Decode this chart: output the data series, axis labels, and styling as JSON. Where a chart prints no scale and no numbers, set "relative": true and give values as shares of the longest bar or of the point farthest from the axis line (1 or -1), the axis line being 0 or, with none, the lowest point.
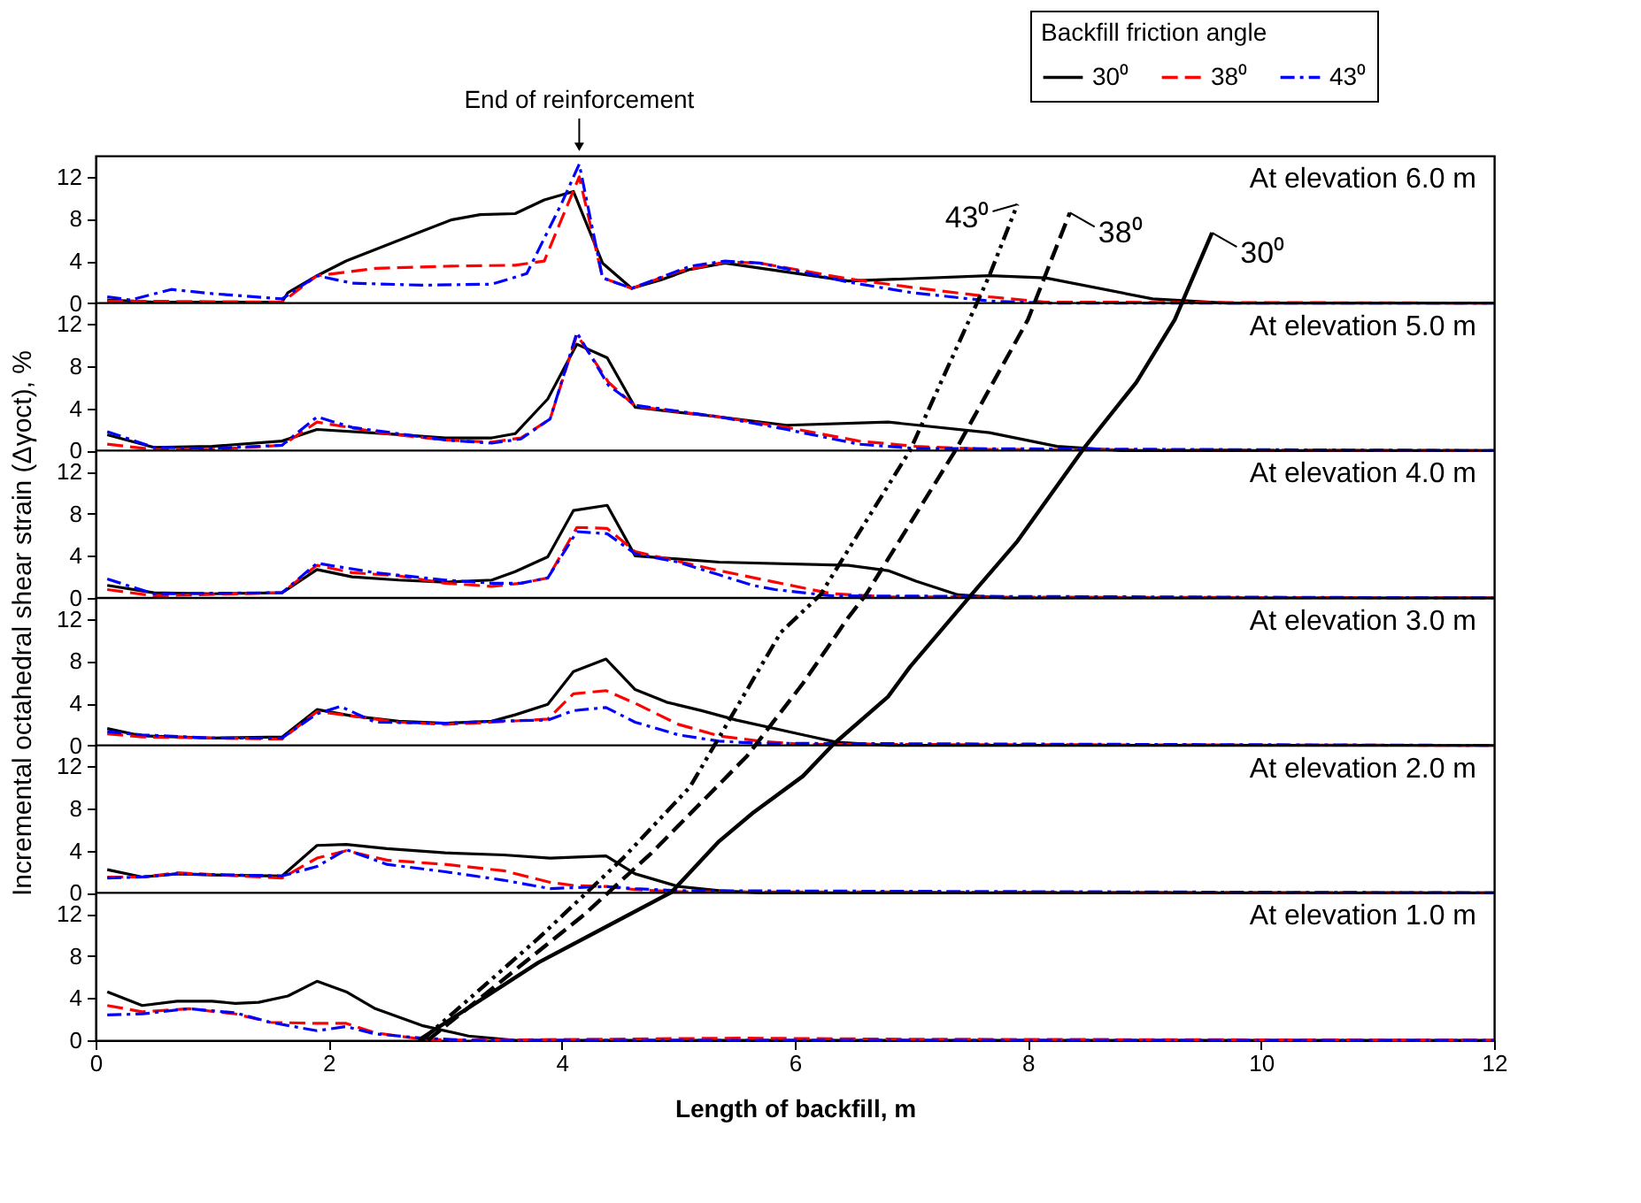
{
  "chart_data": [
    {
      "type": "line",
      "title": "At elevation 6.0 m",
      "xlim": [
        0,
        12
      ],
      "ylim": [
        0,
        14
      ],
      "yticks": [
        0,
        4,
        8,
        12
      ],
      "tick_labels": "y",
      "legend": "top right",
      "legend_title": "Backfill friction angle",
      "annotations": [
        {
          "text": "End of reinforcement",
          "x": 4.15
        }
      ],
      "series": [
        {
          "name": "30⁰",
          "color": "#000000",
          "line_style": "solid",
          "x": [
            0.1,
            0.5,
            1.6,
            1.65,
            1.9,
            2.15,
            2.45,
            2.75,
            3.05,
            3.3,
            3.6,
            3.85,
            4.1,
            4.35,
            4.6,
            4.85,
            5.1,
            5.4,
            6.46,
            7.67,
            8.15,
            9.07,
            9.7,
            12
          ],
          "values": [
            0.3,
            0.1,
            0.1,
            1.0,
            2.6,
            4.0,
            5.3,
            6.6,
            7.9,
            8.4,
            8.5,
            9.8,
            10.6,
            3.8,
            1.4,
            2.2,
            3.2,
            3.8,
            2.1,
            2.6,
            2.4,
            0.4,
            0,
            0
          ]
        },
        {
          "name": "38⁰",
          "color": "#ff0000",
          "line_style": "dashed",
          "x": [
            0.1,
            1.6,
            1.9,
            2.4,
            3.0,
            3.6,
            3.85,
            4.0,
            4.15,
            4.35,
            4.6,
            5.0,
            5.4,
            5.7,
            6.46,
            7.0,
            7.67,
            8.15,
            12
          ],
          "values": [
            0.2,
            0.1,
            2.6,
            3.3,
            3.5,
            3.6,
            4.0,
            8.0,
            12.0,
            2.4,
            1.4,
            3.0,
            3.9,
            3.8,
            2.3,
            1.5,
            0.6,
            0.1,
            0
          ]
        },
        {
          "name": "43⁰",
          "color": "#0000ff",
          "line_style": "dashdot",
          "x": [
            0.1,
            0.3,
            0.65,
            1.0,
            1.6,
            1.9,
            2.2,
            2.8,
            3.4,
            3.7,
            4.0,
            4.15,
            4.35,
            4.6,
            5.1,
            5.4,
            5.7,
            6.46,
            7.0,
            7.67,
            8.15,
            12
          ],
          "values": [
            0.6,
            0.3,
            1.3,
            0.9,
            0.4,
            2.6,
            1.9,
            1.7,
            1.8,
            2.8,
            9.5,
            13.2,
            2.4,
            1.4,
            3.5,
            4.0,
            3.8,
            2.0,
            1.0,
            0.2,
            0,
            0
          ]
        }
      ]
    },
    {
      "type": "line",
      "title": "At elevation 5.0 m",
      "xlim": [
        0,
        12
      ],
      "ylim": [
        0,
        14
      ],
      "yticks": [
        0,
        4,
        8,
        12
      ],
      "tick_labels": "y",
      "series": [
        {
          "color": "#000000",
          "line_style": "solid",
          "x": [
            0.1,
            0.5,
            1.0,
            1.6,
            1.9,
            2.5,
            3.0,
            3.4,
            3.6,
            3.88,
            4.13,
            4.39,
            4.63,
            5.35,
            5.93,
            6.8,
            7.67,
            8.25,
            8.8,
            12
          ],
          "values": [
            1.5,
            0.3,
            0.4,
            0.9,
            2.0,
            1.6,
            1.2,
            1.2,
            1.6,
            4.9,
            10.1,
            8.8,
            4.1,
            3.2,
            2.4,
            2.7,
            1.7,
            0.4,
            0,
            0
          ]
        },
        {
          "color": "#ff0000",
          "line_style": "dashed",
          "x": [
            0.1,
            0.5,
            1.0,
            1.6,
            1.9,
            2.5,
            3.0,
            3.4,
            3.65,
            3.9,
            4.13,
            4.4,
            4.63,
            5.35,
            5.93,
            6.55,
            7.04,
            7.67,
            12
          ],
          "values": [
            0.6,
            0.1,
            0.1,
            0.5,
            2.7,
            1.6,
            1.0,
            0.8,
            1.2,
            3.0,
            11.0,
            6.5,
            4.2,
            3.2,
            2.2,
            0.9,
            0.4,
            0.1,
            0
          ]
        },
        {
          "color": "#0000ff",
          "line_style": "dashdot",
          "x": [
            0.1,
            0.5,
            1.0,
            1.6,
            1.9,
            2.2,
            3.0,
            3.4,
            3.65,
            3.9,
            4.13,
            4.4,
            4.63,
            5.35,
            5.93,
            6.55,
            7.04,
            12
          ],
          "values": [
            1.8,
            0.3,
            0.2,
            0.5,
            3.2,
            2.2,
            1.0,
            0.7,
            1.1,
            3.0,
            11.2,
            6.2,
            4.3,
            3.2,
            2.0,
            0.6,
            0.2,
            0
          ]
        }
      ]
    },
    {
      "type": "line",
      "title": "At elevation 4.0 m",
      "xlim": [
        0,
        12
      ],
      "ylim": [
        0,
        14
      ],
      "yticks": [
        0,
        4,
        8,
        12
      ],
      "tick_labels": "y",
      "series": [
        {
          "color": "#000000",
          "line_style": "solid",
          "x": [
            0.1,
            0.5,
            1.0,
            1.6,
            1.9,
            2.2,
            2.6,
            3.0,
            3.4,
            3.6,
            3.88,
            4.1,
            4.39,
            4.63,
            5.35,
            6.46,
            6.8,
            7.04,
            7.4,
            7.8,
            12
          ],
          "values": [
            1.2,
            0.5,
            0.4,
            0.5,
            2.7,
            2.0,
            1.7,
            1.5,
            1.7,
            2.5,
            3.9,
            8.3,
            8.8,
            4.0,
            3.4,
            3.1,
            2.6,
            1.6,
            0.3,
            0,
            0
          ]
        },
        {
          "color": "#ff0000",
          "line_style": "dashed",
          "x": [
            0.1,
            0.5,
            1.6,
            1.9,
            2.2,
            2.6,
            3.0,
            3.4,
            3.65,
            3.88,
            4.13,
            4.39,
            4.63,
            5.35,
            5.83,
            6.32,
            6.8,
            12
          ],
          "values": [
            0.8,
            0.2,
            0.5,
            3.1,
            2.4,
            2.1,
            1.4,
            1.1,
            1.4,
            1.9,
            6.7,
            6.6,
            4.4,
            2.6,
            1.5,
            0.4,
            0.1,
            0
          ]
        },
        {
          "color": "#0000ff",
          "line_style": "dashdot",
          "x": [
            0.1,
            0.5,
            1.6,
            1.9,
            2.4,
            3.0,
            3.4,
            3.65,
            3.88,
            4.13,
            4.39,
            4.63,
            5.0,
            5.35,
            5.64,
            5.83,
            6.32,
            12
          ],
          "values": [
            1.8,
            0.4,
            0.5,
            3.3,
            2.4,
            1.7,
            1.4,
            1.4,
            1.9,
            6.3,
            6.1,
            4.2,
            3.4,
            2.2,
            1.2,
            0.8,
            0.2,
            0
          ]
        }
      ]
    },
    {
      "type": "line",
      "title": "At elevation 3.0 m",
      "xlim": [
        0,
        12
      ],
      "ylim": [
        0,
        14
      ],
      "yticks": [
        0,
        4,
        8,
        12
      ],
      "tick_labels": "y",
      "series": [
        {
          "color": "#000000",
          "line_style": "solid",
          "x": [
            0.1,
            0.4,
            1.0,
            1.6,
            1.9,
            2.2,
            2.6,
            3.0,
            3.4,
            3.6,
            3.88,
            4.1,
            4.38,
            4.63,
            4.9,
            5.2,
            5.5,
            6.07,
            6.36,
            6.8,
            12
          ],
          "values": [
            1.6,
            0.9,
            0.7,
            0.8,
            3.4,
            2.8,
            2.3,
            2.1,
            2.3,
            2.9,
            3.9,
            7.0,
            8.2,
            5.3,
            4.1,
            3.3,
            2.4,
            1.0,
            0.3,
            0,
            0
          ]
        },
        {
          "color": "#ff0000",
          "line_style": "dashed",
          "x": [
            0.1,
            0.4,
            1.0,
            1.6,
            1.9,
            2.2,
            2.6,
            3.0,
            3.4,
            3.88,
            4.1,
            4.38,
            4.63,
            5.0,
            5.35,
            5.7,
            6.07,
            12
          ],
          "values": [
            1.1,
            0.8,
            0.7,
            0.6,
            3.2,
            2.8,
            2.2,
            2.0,
            2.2,
            2.5,
            4.9,
            5.2,
            4.0,
            2.0,
            0.9,
            0.4,
            0.1,
            0
          ]
        },
        {
          "color": "#0000ff",
          "line_style": "dashdot",
          "x": [
            0.1,
            0.4,
            1.0,
            1.6,
            1.9,
            2.1,
            2.4,
            3.0,
            3.4,
            3.88,
            4.1,
            4.38,
            4.63,
            5.0,
            5.35,
            5.7,
            12
          ],
          "values": [
            1.3,
            1.0,
            0.7,
            0.7,
            3.0,
            3.7,
            2.2,
            2.1,
            2.3,
            2.4,
            3.3,
            3.6,
            2.2,
            1.0,
            0.4,
            0.2,
            0
          ]
        }
      ]
    },
    {
      "type": "line",
      "title": "At elevation 2.0 m",
      "xlim": [
        0,
        12
      ],
      "ylim": [
        0,
        14
      ],
      "yticks": [
        0,
        4,
        8,
        12
      ],
      "tick_labels": "y",
      "series": [
        {
          "color": "#000000",
          "line_style": "solid",
          "x": [
            0.1,
            0.4,
            0.7,
            1.0,
            1.6,
            1.9,
            2.15,
            2.5,
            3.0,
            3.5,
            3.9,
            4.38,
            4.63,
            5.0,
            5.35,
            5.7,
            12
          ],
          "values": [
            2.2,
            1.5,
            1.8,
            1.7,
            1.6,
            4.5,
            4.6,
            4.2,
            3.8,
            3.6,
            3.3,
            3.5,
            1.8,
            0.6,
            0.2,
            0,
            0
          ]
        },
        {
          "color": "#ff0000",
          "line_style": "dashed",
          "x": [
            0.1,
            0.4,
            0.7,
            1.6,
            1.9,
            2.15,
            2.5,
            3.0,
            3.5,
            3.9,
            4.1,
            4.38,
            4.63,
            5.0,
            12
          ],
          "values": [
            1.5,
            1.5,
            1.9,
            1.4,
            3.3,
            4.0,
            3.1,
            2.7,
            2.1,
            1.0,
            0.7,
            0.6,
            0.3,
            0.1,
            0
          ]
        },
        {
          "color": "#0000ff",
          "line_style": "dashdot",
          "x": [
            0.1,
            0.4,
            0.7,
            1.6,
            1.9,
            2.15,
            2.5,
            3.0,
            3.5,
            3.9,
            4.38,
            4.63,
            5.0,
            12
          ],
          "values": [
            1.4,
            1.5,
            1.8,
            1.6,
            2.5,
            4.1,
            2.7,
            2.0,
            1.2,
            0.4,
            0.6,
            0.4,
            0.2,
            0
          ]
        }
      ]
    },
    {
      "type": "line",
      "title": "At elevation 1.0 m",
      "xlim": [
        0,
        12
      ],
      "ylim": [
        0,
        14
      ],
      "yticks": [
        0,
        4,
        8,
        12
      ],
      "xlabel": "Length of backfill, m",
      "xticks": [
        0,
        2,
        4,
        6,
        8,
        10,
        12
      ],
      "series": [
        {
          "color": "#000000",
          "line_style": "solid",
          "x": [
            0.1,
            0.4,
            0.7,
            1.0,
            1.2,
            1.4,
            1.65,
            1.9,
            2.15,
            2.4,
            2.8,
            3.2,
            3.6,
            12
          ],
          "values": [
            4.6,
            3.3,
            3.7,
            3.7,
            3.5,
            3.6,
            4.2,
            5.6,
            4.6,
            3.0,
            1.4,
            0.4,
            0,
            0
          ]
        },
        {
          "color": "#ff0000",
          "line_style": "dashed",
          "x": [
            0.1,
            0.4,
            0.8,
            1.2,
            1.5,
            1.9,
            2.15,
            2.4,
            2.8,
            3.2,
            5.5,
            7.0,
            12
          ],
          "values": [
            3.3,
            2.7,
            3.0,
            2.5,
            1.7,
            1.6,
            1.6,
            0.7,
            0.1,
            0,
            0.2,
            0.1,
            0
          ]
        },
        {
          "color": "#0000ff",
          "line_style": "dashdot",
          "x": [
            0.1,
            0.4,
            0.8,
            1.2,
            1.5,
            1.9,
            2.15,
            2.4,
            2.8,
            3.2,
            12
          ],
          "values": [
            2.4,
            2.5,
            3.0,
            2.6,
            1.7,
            0.9,
            1.3,
            0.6,
            0.2,
            0,
            0
          ]
        }
      ]
    },
    {
      "type": "line",
      "relative": true,
      "ylabel": "Incremental octahedral shear strain (Δγoct), %",
      "xlim": [
        0,
        12
      ],
      "tick_labels": false,
      "annotations": [
        {
          "text": "30⁰",
          "x": 9.58,
          "y": 0.966
        },
        {
          "text": "38⁰",
          "x": 8.36,
          "y": 0.99
        },
        {
          "text": "43⁰",
          "x": 7.91,
          "y": 1
        }
      ],
      "series": [
        {
          "color": "#000000",
          "line_style": "solid",
          "x": [
            2.77,
            3.8,
            4.33,
            4.94,
            5.35,
            5.64,
            6.07,
            6.33,
            6.8,
            6.99,
            7.57,
            7.91,
            8.49,
            8.93,
            9.26,
            9.58
          ],
          "values": [
            0,
            0.093,
            0.132,
            0.177,
            0.238,
            0.272,
            0.316,
            0.354,
            0.411,
            0.447,
            0.542,
            0.597,
            0.71,
            0.787,
            0.862,
            0.966
          ]
        },
        {
          "color": "#000000",
          "line_style": "dashed",
          "x": [
            2.85,
            4.19,
            4.77,
            5.59,
            6.07,
            6.46,
            6.61,
            7.38,
            8.0,
            8.36
          ],
          "values": [
            0,
            0.15,
            0.224,
            0.34,
            0.427,
            0.506,
            0.533,
            0.706,
            0.862,
            0.99
          ]
        },
        {
          "color": "#000000",
          "line_style": "dashdotdot",
          "x": [
            2.8,
            3.8,
            4.52,
            5.1,
            5.88,
            6.22,
            6.99,
            7.67,
            7.91
          ],
          "values": [
            0,
            0.122,
            0.217,
            0.303,
            0.488,
            0.533,
            0.706,
            0.915,
            1
          ]
        }
      ]
    }
  ]
}
